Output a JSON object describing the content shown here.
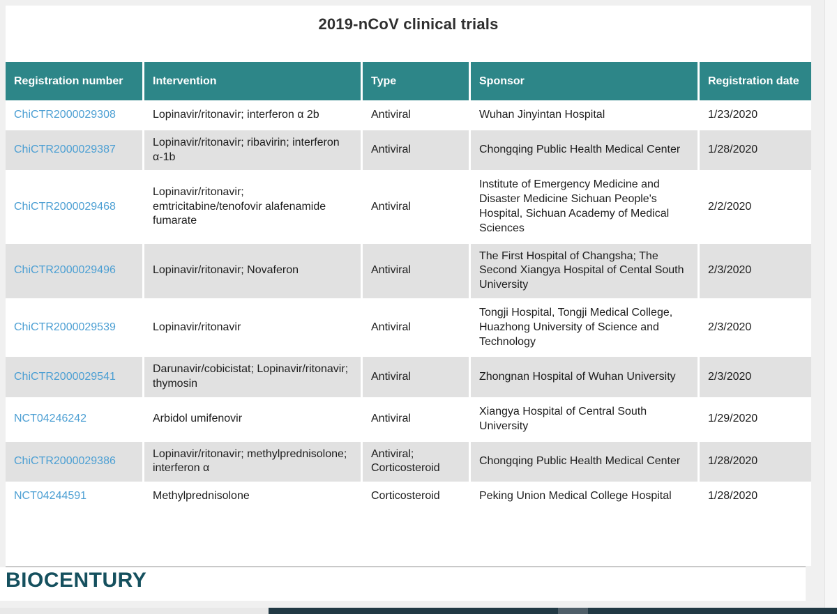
{
  "title": "2019-nCoV clinical trials",
  "logo_text": "BIOCENTURY",
  "colors": {
    "header_bg": "#2d8688",
    "link_blue": "#4c9fd3",
    "alt_row_gray": "#e1e1e1",
    "logo_teal": "#15505e",
    "bottom_bar_dark": "#213944"
  },
  "table": {
    "headers": [
      "Registration number",
      "Intervention",
      "Type",
      "Sponsor",
      "Registration date"
    ],
    "rows": [
      {
        "registration_number": "ChiCTR2000029308",
        "intervention": "Lopinavir/ritonavir; interferon α 2b",
        "type": "Antiviral",
        "sponsor": "Wuhan Jinyintan Hospital",
        "registration_date": "1/23/2020"
      },
      {
        "registration_number": "ChiCTR2000029387",
        "intervention": "Lopinavir/ritonavir; ribavirin; interferon α-1b",
        "type": "Antiviral",
        "sponsor": "Chongqing Public Health Medical Center",
        "registration_date": "1/28/2020"
      },
      {
        "registration_number": "ChiCTR2000029468",
        "intervention": "Lopinavir/ritonavir; emtricitabine/tenofovir alafenamide fumarate",
        "type": "Antiviral",
        "sponsor": "Institute of Emergency Medicine and Disaster Medicine Sichuan People's Hospital, Sichuan Academy of Medical Sciences",
        "registration_date": "2/2/2020"
      },
      {
        "registration_number": "ChiCTR2000029496",
        "intervention": "Lopinavir/ritonavir; Novaferon",
        "type": "Antiviral",
        "sponsor": "The First Hospital of Changsha; The Second Xiangya Hospital of Cental South University",
        "registration_date": "2/3/2020"
      },
      {
        "registration_number": "ChiCTR2000029539",
        "intervention": "Lopinavir/ritonavir",
        "type": "Antiviral",
        "sponsor": "Tongji Hospital, Tongji Medical College, Huazhong University of Science and Technology",
        "registration_date": "2/3/2020"
      },
      {
        "registration_number": "ChiCTR2000029541",
        "intervention": "Darunavir/cobicistat; Lopinavir/ritonavir; thymosin",
        "type": "Antiviral",
        "sponsor": "Zhongnan Hospital of Wuhan University",
        "registration_date": "2/3/2020"
      },
      {
        "registration_number": "NCT04246242",
        "intervention": "Arbidol umifenovir",
        "type": "Antiviral",
        "sponsor": "Xiangya Hospital of Central South University",
        "registration_date": "1/29/2020"
      },
      {
        "registration_number": "ChiCTR2000029386",
        "intervention": "Lopinavir/ritonavir; methylprednisolone; interferon α",
        "type": "Antiviral; Corticosteroid",
        "sponsor": "Chongqing Public Health Medical Center",
        "registration_date": "1/28/2020"
      },
      {
        "registration_number": "NCT04244591",
        "intervention": "Methylprednisolone",
        "type": "Corticosteroid",
        "sponsor": "Peking Union Medical College Hospital",
        "registration_date": "1/28/2020"
      }
    ]
  }
}
